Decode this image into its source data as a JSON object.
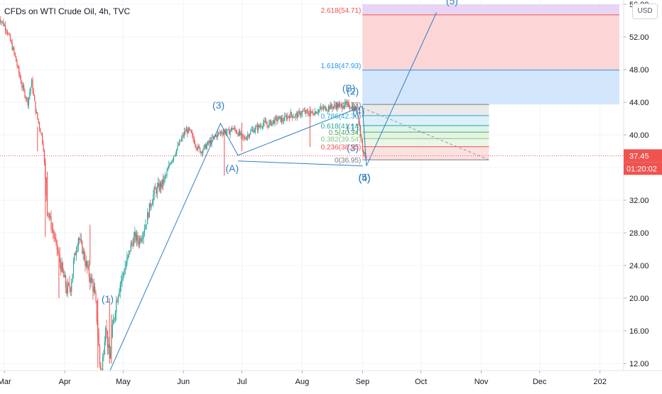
{
  "chart_data": {
    "type": "candlestick",
    "title": "CFDs on WTI Crude Oil, 4h, TVC",
    "currency": "USD",
    "ylim": [
      11,
      56
    ],
    "y_ticks": [
      "56.00",
      "52.00",
      "48.00",
      "44.00",
      "40.00",
      "36.00",
      "32.00",
      "28.00",
      "24.00",
      "20.00",
      "16.00",
      "12.00"
    ],
    "x_ticks": [
      {
        "label": "Mar",
        "day": 3
      },
      {
        "label": "Apr",
        "day": 34
      },
      {
        "label": "May",
        "day": 64
      },
      {
        "label": "Jun",
        "day": 95
      },
      {
        "label": "Jul",
        "day": 125
      },
      {
        "label": "Aug",
        "day": 156
      },
      {
        "label": "Sep",
        "day": 187
      },
      {
        "label": "Oct",
        "day": 217
      },
      {
        "label": "Nov",
        "day": 248
      },
      {
        "label": "Dec",
        "day": 278
      },
      {
        "label": "202",
        "day": 309
      }
    ],
    "current_price": {
      "label": "37.45",
      "value": 37.45,
      "countdown": "01:20:02",
      "color": "#ef5350"
    },
    "price_path": [
      [
        0,
        54.5
      ],
      [
        4,
        53
      ],
      [
        8,
        50
      ],
      [
        12,
        46
      ],
      [
        15,
        44
      ],
      [
        17,
        46.5
      ],
      [
        19,
        43
      ],
      [
        21,
        41
      ],
      [
        22,
        40
      ],
      [
        23,
        38.5
      ],
      [
        24,
        34.5
      ],
      [
        25,
        31
      ],
      [
        27,
        29
      ],
      [
        29,
        27
      ],
      [
        31,
        25
      ],
      [
        33,
        23
      ],
      [
        35,
        21
      ],
      [
        37,
        21.5
      ],
      [
        39,
        25
      ],
      [
        41,
        27.5
      ],
      [
        43,
        26
      ],
      [
        45,
        24
      ],
      [
        47,
        22.5
      ],
      [
        49,
        21
      ],
      [
        50,
        19
      ],
      [
        51,
        16
      ],
      [
        52,
        12
      ],
      [
        53,
        11
      ],
      [
        54,
        14
      ],
      [
        55,
        17
      ],
      [
        56,
        14.5
      ],
      [
        57,
        12.5
      ],
      [
        58,
        15
      ],
      [
        60,
        19
      ],
      [
        62,
        21.5
      ],
      [
        64,
        23
      ],
      [
        66,
        24.5
      ],
      [
        68,
        26.5
      ],
      [
        70,
        27.5
      ],
      [
        72,
        27
      ],
      [
        74,
        28
      ],
      [
        76,
        29.5
      ],
      [
        78,
        31.5
      ],
      [
        80,
        33
      ],
      [
        82,
        33.5
      ],
      [
        84,
        34
      ],
      [
        86,
        35
      ],
      [
        88,
        36.5
      ],
      [
        90,
        37.5
      ],
      [
        92,
        38.5
      ],
      [
        94,
        39.5
      ],
      [
        96,
        40.5
      ],
      [
        98,
        40.5
      ],
      [
        100,
        39.5
      ],
      [
        102,
        38.5
      ],
      [
        104,
        38
      ],
      [
        106,
        38.5
      ],
      [
        108,
        39
      ],
      [
        110,
        39.5
      ],
      [
        112,
        40
      ],
      [
        114,
        40.3
      ],
      [
        116,
        40.5
      ],
      [
        118,
        40.3
      ],
      [
        120,
        40.8
      ],
      [
        122,
        40.5
      ],
      [
        124,
        40
      ],
      [
        126,
        39.5
      ],
      [
        128,
        40
      ],
      [
        130,
        40.5
      ],
      [
        132,
        40.8
      ],
      [
        134,
        41
      ],
      [
        136,
        41.5
      ],
      [
        138,
        41.2
      ],
      [
        140,
        41.5
      ],
      [
        142,
        41.8
      ],
      [
        144,
        42
      ],
      [
        146,
        41.8
      ],
      [
        148,
        42.2
      ],
      [
        150,
        42.5
      ],
      [
        152,
        42.3
      ],
      [
        154,
        42.5
      ],
      [
        156,
        42.8
      ],
      [
        158,
        42.7
      ],
      [
        160,
        42.6
      ],
      [
        162,
        42.8
      ],
      [
        164,
        43
      ],
      [
        166,
        43.2
      ],
      [
        168,
        43.3
      ],
      [
        170,
        43.4
      ],
      [
        172,
        43.5
      ],
      [
        174,
        43.6
      ],
      [
        176,
        43.5
      ],
      [
        178,
        43.7
      ],
      [
        180,
        43.6
      ],
      [
        182,
        43.4
      ],
      [
        184,
        43
      ],
      [
        185,
        42
      ],
      [
        186,
        40
      ],
      [
        187,
        38.5
      ],
      [
        188,
        37.5
      ],
      [
        189,
        37.45
      ]
    ],
    "spike_candles": [
      {
        "day": 20,
        "high": 41,
        "low": 38
      },
      {
        "day": 24,
        "high": 37,
        "low": 27.5
      },
      {
        "day": 25,
        "high": 35.5,
        "low": 30
      },
      {
        "day": 31,
        "high": 25,
        "low": 20
      },
      {
        "day": 47,
        "high": 29,
        "low": 24
      },
      {
        "day": 51,
        "high": 20,
        "low": 11.5
      },
      {
        "day": 57,
        "high": 20,
        "low": 12
      },
      {
        "day": 58,
        "high": 18,
        "low": 12
      },
      {
        "day": 116,
        "high": 40.5,
        "low": 35
      },
      {
        "day": 125,
        "high": 41.5,
        "low": 38
      },
      {
        "day": 160,
        "high": 43.5,
        "low": 38.5
      }
    ],
    "fib_retracement": {
      "anchor_day": 187,
      "end_day": 252,
      "levels": [
        {
          "ratio": "1",
          "label": "1(43.73)",
          "value": 43.73,
          "color": "#787b86",
          "fill": "#e5e5e5"
        },
        {
          "ratio": "0.786",
          "label": "0.786(42.36)",
          "value": 42.36,
          "color": "#26a6da",
          "fill": "#d5ecf7"
        },
        {
          "ratio": "0.618",
          "label": "0.618(41.14)",
          "value": 41.14,
          "color": "#26a69a",
          "fill": "#d5f0e9"
        },
        {
          "ratio": "0.5",
          "label": "0.5(40.34)",
          "value": 40.34,
          "color": "#4caf50",
          "fill": "#ddf1dc"
        },
        {
          "ratio": "0.382",
          "label": "0.382(39.54)",
          "value": 39.54,
          "color": "#81c784",
          "fill": "#e6f4e2"
        },
        {
          "ratio": "0.236",
          "label": "0.236(38.55)",
          "value": 38.55,
          "color": "#ef5350",
          "fill": "#fbdada"
        },
        {
          "ratio": "0",
          "label": "0(36.95)",
          "value": 36.95,
          "color": "#787b86",
          "fill": ""
        }
      ]
    },
    "fib_extension": {
      "levels": [
        {
          "label": "2.618(54.71)",
          "value": 54.71,
          "color": "#ef5350"
        },
        {
          "label": "1.618(47.93)",
          "value": 47.93,
          "color": "#2196f3"
        }
      ],
      "fills": [
        {
          "from": 56,
          "to": 54.71,
          "color": "#e8d5f3"
        },
        {
          "from": 54.71,
          "to": 47.93,
          "color": "#fcd6d6"
        },
        {
          "from": 47.93,
          "to": 43.73,
          "color": "#d3e6fb"
        }
      ]
    },
    "wave_lines": [
      [
        [
          57,
          11
        ],
        [
          114,
          41.4
        ],
        [
          123,
          37.5
        ],
        [
          187,
          43.5
        ],
        [
          189,
          36.2
        ],
        [
          225,
          55
        ]
      ],
      [
        [
          123,
          36.8
        ],
        [
          187,
          36.2
        ]
      ]
    ],
    "dashed_trend": [
      [
        187,
        43.3
      ],
      [
        252,
        36.95
      ]
    ],
    "wave_labels": [
      {
        "text": "(1)",
        "day": 56,
        "price": 19.5
      },
      {
        "text": "(3)",
        "day": 113,
        "price": 43.2
      },
      {
        "text": "(A)",
        "day": 120,
        "price": 35.5
      },
      {
        "text": "(B)",
        "day": 180,
        "price": 45.3
      },
      {
        "text": "(2)",
        "day": 182,
        "price": 44.9
      },
      {
        "text": "(4)",
        "day": 185,
        "price": 42.5
      },
      {
        "text": "(1)",
        "day": 182,
        "price": 40.5
      },
      {
        "text": "(3)",
        "day": 182,
        "price": 38
      },
      {
        "text": "(5)",
        "day": 188,
        "price": 34.4
      },
      {
        "text": "(4)",
        "day": 188,
        "price": 34.3
      },
      {
        "text": "(5)",
        "day": 233,
        "price": 56
      }
    ]
  }
}
